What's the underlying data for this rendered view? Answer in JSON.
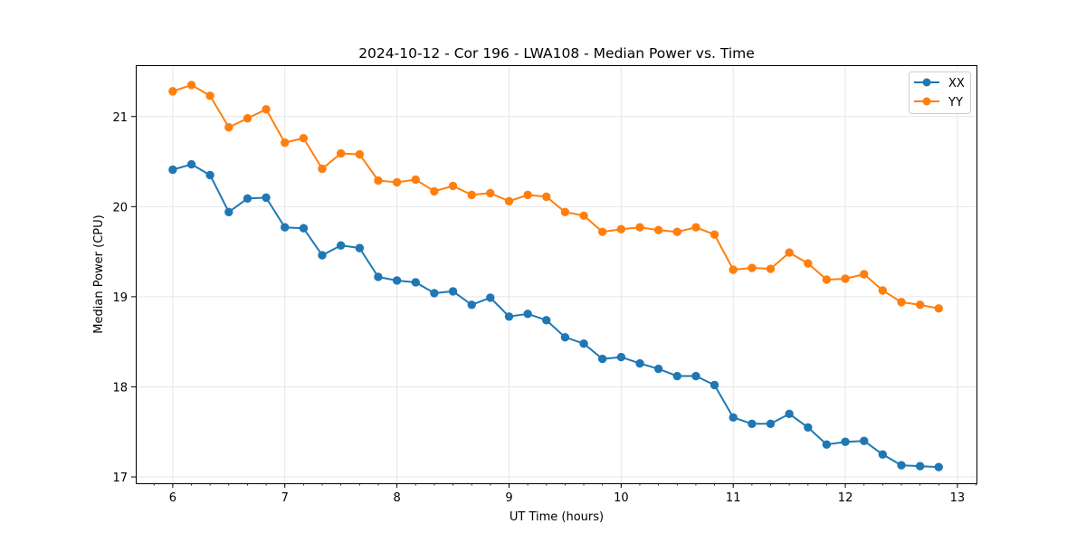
{
  "chart_data": {
    "type": "line",
    "title": "2024-10-12 - Cor 196 - LWA108 - Median Power vs. Time",
    "xlabel": "UT Time (hours)",
    "ylabel": "Median Power (CPU)",
    "xlim": [
      5.67,
      13.17
    ],
    "ylim": [
      16.93,
      21.57
    ],
    "xticks": [
      6,
      7,
      8,
      9,
      10,
      11,
      12,
      13
    ],
    "yticks": [
      17,
      18,
      19,
      20,
      21
    ],
    "grid": true,
    "legend_position": "top-right",
    "x": [
      6.0,
      6.167,
      6.333,
      6.5,
      6.667,
      6.833,
      7.0,
      7.167,
      7.333,
      7.5,
      7.667,
      7.833,
      8.0,
      8.167,
      8.333,
      8.5,
      8.667,
      8.833,
      9.0,
      9.167,
      9.333,
      9.5,
      9.667,
      9.833,
      10.0,
      10.167,
      10.333,
      10.5,
      10.667,
      10.833,
      11.0,
      11.167,
      11.333,
      11.5,
      11.667,
      11.833,
      12.0,
      12.167,
      12.333,
      12.5,
      12.667,
      12.833
    ],
    "series": [
      {
        "name": "XX",
        "color": "#1f77b4",
        "values": [
          20.41,
          20.47,
          20.35,
          19.94,
          20.09,
          20.1,
          19.77,
          19.76,
          19.46,
          19.57,
          19.54,
          19.22,
          19.18,
          19.16,
          19.04,
          19.06,
          18.91,
          18.99,
          18.78,
          18.81,
          18.74,
          18.55,
          18.48,
          18.31,
          18.33,
          18.26,
          18.2,
          18.12,
          18.12,
          18.02,
          17.66,
          17.59,
          17.59,
          17.7,
          17.55,
          17.36,
          17.39,
          17.4,
          17.25,
          17.13,
          17.12,
          17.11
        ]
      },
      {
        "name": "YY",
        "color": "#ff7f0e",
        "values": [
          21.28,
          21.35,
          21.23,
          20.88,
          20.98,
          21.08,
          20.71,
          20.76,
          20.42,
          20.59,
          20.58,
          20.29,
          20.27,
          20.3,
          20.17,
          20.23,
          20.13,
          20.15,
          20.06,
          20.13,
          20.11,
          19.94,
          19.9,
          19.72,
          19.75,
          19.77,
          19.74,
          19.72,
          19.77,
          19.69,
          19.3,
          19.32,
          19.31,
          19.49,
          19.37,
          19.19,
          19.2,
          19.25,
          19.07,
          18.94,
          18.91,
          18.87
        ]
      }
    ]
  }
}
